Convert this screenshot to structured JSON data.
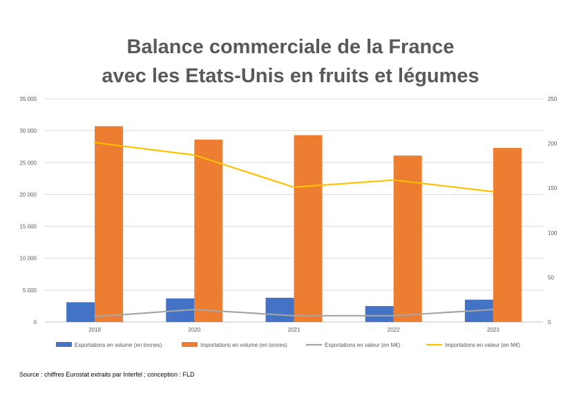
{
  "chart_data": {
    "type": "bar",
    "title_lines": [
      "Balance commerciale de la France",
      "avec les Etats-Unis en fruits et légumes"
    ],
    "categories": [
      "2019",
      "2020",
      "2021",
      "2022",
      "2023"
    ],
    "series": [
      {
        "name": "Exportations en volume (en tonnes)",
        "type": "bar",
        "axis": "left",
        "color": "#4472C4",
        "values": [
          3100,
          3700,
          3800,
          2500,
          3500
        ]
      },
      {
        "name": "Importations en volume (en tonnes)",
        "type": "bar",
        "axis": "left",
        "color": "#ED7D31",
        "values": [
          30700,
          28600,
          29300,
          26100,
          27300
        ]
      },
      {
        "name": "Exportations en valeur (en M€)",
        "type": "line",
        "axis": "right",
        "color": "#A5A5A5",
        "values": [
          6,
          14,
          7,
          7,
          14
        ]
      },
      {
        "name": "Importations en valeur (en M€)",
        "type": "line",
        "axis": "right",
        "color": "#FFC000",
        "values": [
          201,
          187,
          151,
          159,
          146
        ]
      }
    ],
    "y_left": {
      "ticks": [
        "0",
        "5 000",
        "10 000",
        "15 000",
        "20 000",
        "25 000",
        "30 000",
        "35 000"
      ],
      "range": [
        0,
        35000
      ]
    },
    "y_right": {
      "ticks": [
        "0",
        "50",
        "100",
        "150",
        "200",
        "250"
      ],
      "range": [
        0,
        250
      ]
    },
    "grid": true,
    "legend_position": "bottom"
  },
  "source_text": "Source : chiffres Eurostat extraits par Interfel ; conception : FLD"
}
